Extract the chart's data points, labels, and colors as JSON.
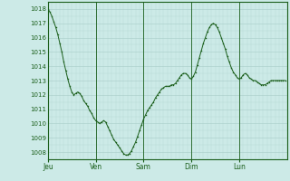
{
  "bg_color": "#cceae7",
  "line_color": "#1a5e1a",
  "grid_color_major": "#a8ccc8",
  "grid_color_minor": "#b8d8d4",
  "tick_label_color": "#1a5e1a",
  "ylim": [
    1007.5,
    1018.5
  ],
  "yticks": [
    1008,
    1009,
    1010,
    1011,
    1012,
    1013,
    1014,
    1015,
    1016,
    1017,
    1018
  ],
  "day_labels": [
    "Jeu",
    "Ven",
    "Sam",
    "Dim",
    "Lun"
  ],
  "day_positions": [
    0,
    24,
    48,
    72,
    96
  ],
  "total_hours": 120,
  "pressure_values": [
    1018.0,
    1017.8,
    1017.5,
    1017.1,
    1016.7,
    1016.2,
    1015.6,
    1015.0,
    1014.3,
    1013.7,
    1013.1,
    1012.6,
    1012.2,
    1012.0,
    1012.1,
    1012.2,
    1012.1,
    1011.9,
    1011.6,
    1011.4,
    1011.2,
    1010.9,
    1010.7,
    1010.4,
    1010.2,
    1010.1,
    1010.0,
    1010.1,
    1010.2,
    1010.1,
    1009.8,
    1009.5,
    1009.2,
    1008.9,
    1008.7,
    1008.5,
    1008.3,
    1008.1,
    1007.9,
    1007.8,
    1007.8,
    1007.9,
    1008.1,
    1008.4,
    1008.7,
    1009.1,
    1009.5,
    1009.9,
    1010.3,
    1010.6,
    1010.9,
    1011.1,
    1011.3,
    1011.5,
    1011.8,
    1012.0,
    1012.2,
    1012.4,
    1012.5,
    1012.6,
    1012.6,
    1012.6,
    1012.7,
    1012.7,
    1012.8,
    1013.0,
    1013.2,
    1013.4,
    1013.5,
    1013.5,
    1013.4,
    1013.2,
    1013.1,
    1013.3,
    1013.6,
    1014.1,
    1014.6,
    1015.1,
    1015.6,
    1016.0,
    1016.4,
    1016.7,
    1016.9,
    1017.0,
    1016.9,
    1016.7,
    1016.4,
    1016.0,
    1015.6,
    1015.2,
    1014.7,
    1014.3,
    1013.9,
    1013.6,
    1013.4,
    1013.2,
    1013.1,
    1013.2,
    1013.4,
    1013.5,
    1013.4,
    1013.2,
    1013.1,
    1013.0,
    1013.0,
    1012.9,
    1012.8,
    1012.7,
    1012.7,
    1012.7,
    1012.8,
    1012.9,
    1013.0,
    1013.0,
    1013.0,
    1013.0,
    1013.0,
    1013.0,
    1013.0,
    1013.0
  ]
}
